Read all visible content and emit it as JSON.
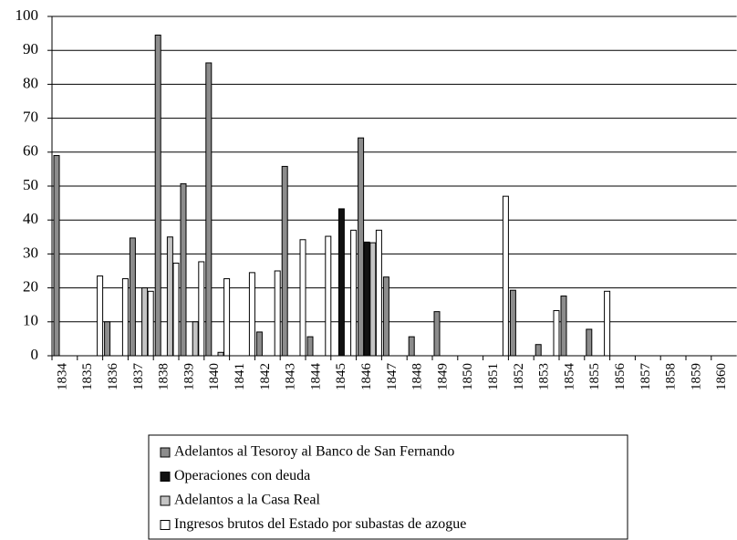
{
  "chart_data": {
    "type": "bar",
    "categories": [
      "1834",
      "1835",
      "1836",
      "1837",
      "1838",
      "1839",
      "1840",
      "1841",
      "1842",
      "1843",
      "1844",
      "1845",
      "1846",
      "1847",
      "1848",
      "1849",
      "1850",
      "1851",
      "1852",
      "1853",
      "1854",
      "1855",
      "1856",
      "1857",
      "1858",
      "1859",
      "1860"
    ],
    "series": [
      {
        "name": "Adelantos al Tesoroy al Banco de San Fernando",
        "color": "#8c8c8c",
        "values": [
          59,
          null,
          10,
          34.7,
          94.5,
          50.7,
          86.3,
          null,
          7,
          55.8,
          5.6,
          null,
          64.2,
          23.2,
          5.6,
          13,
          null,
          null,
          19.3,
          3.3,
          17.6,
          7.8,
          null,
          null,
          null,
          null,
          null
        ]
      },
      {
        "name": "Operaciones con deuda",
        "color": "#111111",
        "values": [
          null,
          null,
          null,
          null,
          null,
          null,
          null,
          null,
          null,
          null,
          null,
          43.3,
          33.5,
          null,
          null,
          null,
          null,
          null,
          null,
          null,
          null,
          null,
          null,
          null,
          null,
          null,
          null
        ]
      },
      {
        "name": "Adelantos a la Casa Real",
        "color": "#c4c4c4",
        "values": [
          null,
          null,
          null,
          20,
          35,
          10,
          1,
          null,
          null,
          null,
          null,
          null,
          33.3,
          null,
          null,
          null,
          null,
          null,
          null,
          null,
          null,
          null,
          null,
          null,
          null,
          null,
          null
        ]
      },
      {
        "name": "Ingresos brutos del Estado por subastas de azogue",
        "color": "#ffffff",
        "values": [
          null,
          23.5,
          22.7,
          19,
          27.3,
          27.7,
          22.7,
          24.5,
          25,
          34.2,
          35.2,
          37,
          37,
          null,
          null,
          null,
          null,
          47,
          null,
          13.3,
          null,
          19,
          null,
          null,
          null,
          null,
          null
        ]
      }
    ],
    "ylim": [
      0,
      100
    ],
    "yticks": [
      0,
      10,
      20,
      30,
      40,
      50,
      60,
      70,
      80,
      90,
      100
    ],
    "grid": true
  }
}
